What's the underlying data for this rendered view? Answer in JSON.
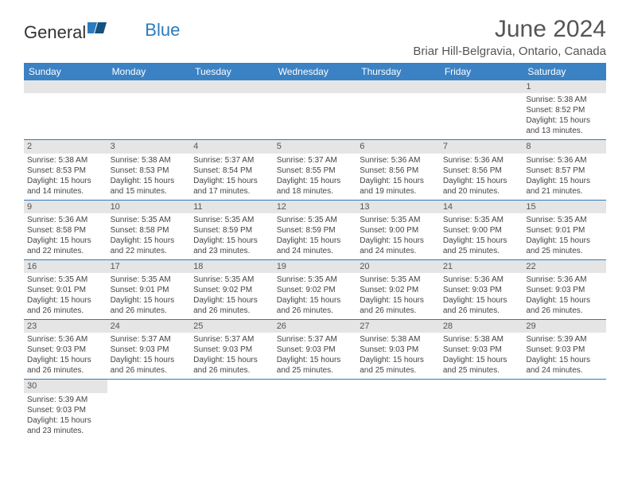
{
  "logo": {
    "text_general": "General",
    "text_blue": "Blue"
  },
  "title": "June 2024",
  "location": "Briar Hill-Belgravia, Ontario, Canada",
  "colors": {
    "header_bg": "#3b82c4",
    "header_text": "#ffffff",
    "daynum_bg": "#e5e5e5",
    "border": "#2b7bbf",
    "logo_blue": "#2b7bbf",
    "body_text": "#444444"
  },
  "day_headers": [
    "Sunday",
    "Monday",
    "Tuesday",
    "Wednesday",
    "Thursday",
    "Friday",
    "Saturday"
  ],
  "weeks": [
    [
      null,
      null,
      null,
      null,
      null,
      null,
      {
        "n": "1",
        "sr": "Sunrise: 5:38 AM",
        "ss": "Sunset: 8:52 PM",
        "d1": "Daylight: 15 hours",
        "d2": "and 13 minutes."
      }
    ],
    [
      {
        "n": "2",
        "sr": "Sunrise: 5:38 AM",
        "ss": "Sunset: 8:53 PM",
        "d1": "Daylight: 15 hours",
        "d2": "and 14 minutes."
      },
      {
        "n": "3",
        "sr": "Sunrise: 5:38 AM",
        "ss": "Sunset: 8:53 PM",
        "d1": "Daylight: 15 hours",
        "d2": "and 15 minutes."
      },
      {
        "n": "4",
        "sr": "Sunrise: 5:37 AM",
        "ss": "Sunset: 8:54 PM",
        "d1": "Daylight: 15 hours",
        "d2": "and 17 minutes."
      },
      {
        "n": "5",
        "sr": "Sunrise: 5:37 AM",
        "ss": "Sunset: 8:55 PM",
        "d1": "Daylight: 15 hours",
        "d2": "and 18 minutes."
      },
      {
        "n": "6",
        "sr": "Sunrise: 5:36 AM",
        "ss": "Sunset: 8:56 PM",
        "d1": "Daylight: 15 hours",
        "d2": "and 19 minutes."
      },
      {
        "n": "7",
        "sr": "Sunrise: 5:36 AM",
        "ss": "Sunset: 8:56 PM",
        "d1": "Daylight: 15 hours",
        "d2": "and 20 minutes."
      },
      {
        "n": "8",
        "sr": "Sunrise: 5:36 AM",
        "ss": "Sunset: 8:57 PM",
        "d1": "Daylight: 15 hours",
        "d2": "and 21 minutes."
      }
    ],
    [
      {
        "n": "9",
        "sr": "Sunrise: 5:36 AM",
        "ss": "Sunset: 8:58 PM",
        "d1": "Daylight: 15 hours",
        "d2": "and 22 minutes."
      },
      {
        "n": "10",
        "sr": "Sunrise: 5:35 AM",
        "ss": "Sunset: 8:58 PM",
        "d1": "Daylight: 15 hours",
        "d2": "and 22 minutes."
      },
      {
        "n": "11",
        "sr": "Sunrise: 5:35 AM",
        "ss": "Sunset: 8:59 PM",
        "d1": "Daylight: 15 hours",
        "d2": "and 23 minutes."
      },
      {
        "n": "12",
        "sr": "Sunrise: 5:35 AM",
        "ss": "Sunset: 8:59 PM",
        "d1": "Daylight: 15 hours",
        "d2": "and 24 minutes."
      },
      {
        "n": "13",
        "sr": "Sunrise: 5:35 AM",
        "ss": "Sunset: 9:00 PM",
        "d1": "Daylight: 15 hours",
        "d2": "and 24 minutes."
      },
      {
        "n": "14",
        "sr": "Sunrise: 5:35 AM",
        "ss": "Sunset: 9:00 PM",
        "d1": "Daylight: 15 hours",
        "d2": "and 25 minutes."
      },
      {
        "n": "15",
        "sr": "Sunrise: 5:35 AM",
        "ss": "Sunset: 9:01 PM",
        "d1": "Daylight: 15 hours",
        "d2": "and 25 minutes."
      }
    ],
    [
      {
        "n": "16",
        "sr": "Sunrise: 5:35 AM",
        "ss": "Sunset: 9:01 PM",
        "d1": "Daylight: 15 hours",
        "d2": "and 26 minutes."
      },
      {
        "n": "17",
        "sr": "Sunrise: 5:35 AM",
        "ss": "Sunset: 9:01 PM",
        "d1": "Daylight: 15 hours",
        "d2": "and 26 minutes."
      },
      {
        "n": "18",
        "sr": "Sunrise: 5:35 AM",
        "ss": "Sunset: 9:02 PM",
        "d1": "Daylight: 15 hours",
        "d2": "and 26 minutes."
      },
      {
        "n": "19",
        "sr": "Sunrise: 5:35 AM",
        "ss": "Sunset: 9:02 PM",
        "d1": "Daylight: 15 hours",
        "d2": "and 26 minutes."
      },
      {
        "n": "20",
        "sr": "Sunrise: 5:35 AM",
        "ss": "Sunset: 9:02 PM",
        "d1": "Daylight: 15 hours",
        "d2": "and 26 minutes."
      },
      {
        "n": "21",
        "sr": "Sunrise: 5:36 AM",
        "ss": "Sunset: 9:03 PM",
        "d1": "Daylight: 15 hours",
        "d2": "and 26 minutes."
      },
      {
        "n": "22",
        "sr": "Sunrise: 5:36 AM",
        "ss": "Sunset: 9:03 PM",
        "d1": "Daylight: 15 hours",
        "d2": "and 26 minutes."
      }
    ],
    [
      {
        "n": "23",
        "sr": "Sunrise: 5:36 AM",
        "ss": "Sunset: 9:03 PM",
        "d1": "Daylight: 15 hours",
        "d2": "and 26 minutes."
      },
      {
        "n": "24",
        "sr": "Sunrise: 5:37 AM",
        "ss": "Sunset: 9:03 PM",
        "d1": "Daylight: 15 hours",
        "d2": "and 26 minutes."
      },
      {
        "n": "25",
        "sr": "Sunrise: 5:37 AM",
        "ss": "Sunset: 9:03 PM",
        "d1": "Daylight: 15 hours",
        "d2": "and 26 minutes."
      },
      {
        "n": "26",
        "sr": "Sunrise: 5:37 AM",
        "ss": "Sunset: 9:03 PM",
        "d1": "Daylight: 15 hours",
        "d2": "and 25 minutes."
      },
      {
        "n": "27",
        "sr": "Sunrise: 5:38 AM",
        "ss": "Sunset: 9:03 PM",
        "d1": "Daylight: 15 hours",
        "d2": "and 25 minutes."
      },
      {
        "n": "28",
        "sr": "Sunrise: 5:38 AM",
        "ss": "Sunset: 9:03 PM",
        "d1": "Daylight: 15 hours",
        "d2": "and 25 minutes."
      },
      {
        "n": "29",
        "sr": "Sunrise: 5:39 AM",
        "ss": "Sunset: 9:03 PM",
        "d1": "Daylight: 15 hours",
        "d2": "and 24 minutes."
      }
    ],
    [
      {
        "n": "30",
        "sr": "Sunrise: 5:39 AM",
        "ss": "Sunset: 9:03 PM",
        "d1": "Daylight: 15 hours",
        "d2": "and 23 minutes."
      },
      null,
      null,
      null,
      null,
      null,
      null
    ]
  ]
}
